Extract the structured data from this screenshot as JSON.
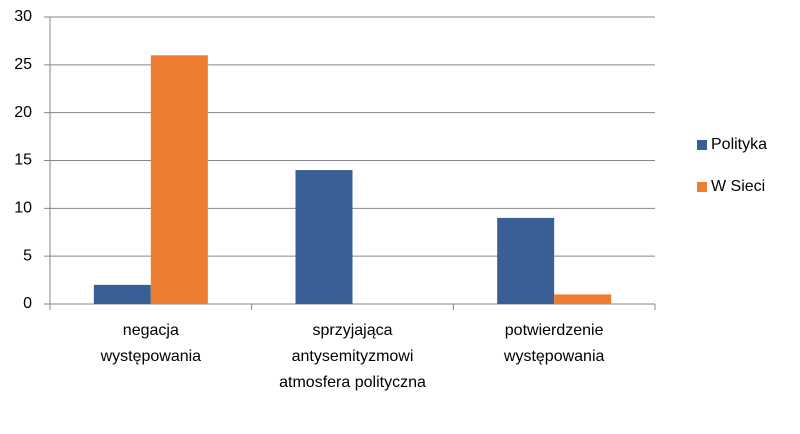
{
  "chart_data": {
    "type": "bar",
    "categories": [
      "negacja występowania",
      "sprzyjająca antysemityzmowi atmosfera polityczna",
      "potwierdzenie występowania"
    ],
    "series": [
      {
        "name": "Polityka",
        "color": "#3a5f96",
        "values": [
          2,
          14,
          9
        ]
      },
      {
        "name": "W Sieci",
        "color": "#ed7d31",
        "values": [
          26,
          0,
          1
        ]
      }
    ],
    "ylim": [
      0,
      30
    ],
    "yticks": [
      0,
      5,
      10,
      15,
      20,
      25,
      30
    ],
    "grid": true,
    "legend": "right"
  }
}
